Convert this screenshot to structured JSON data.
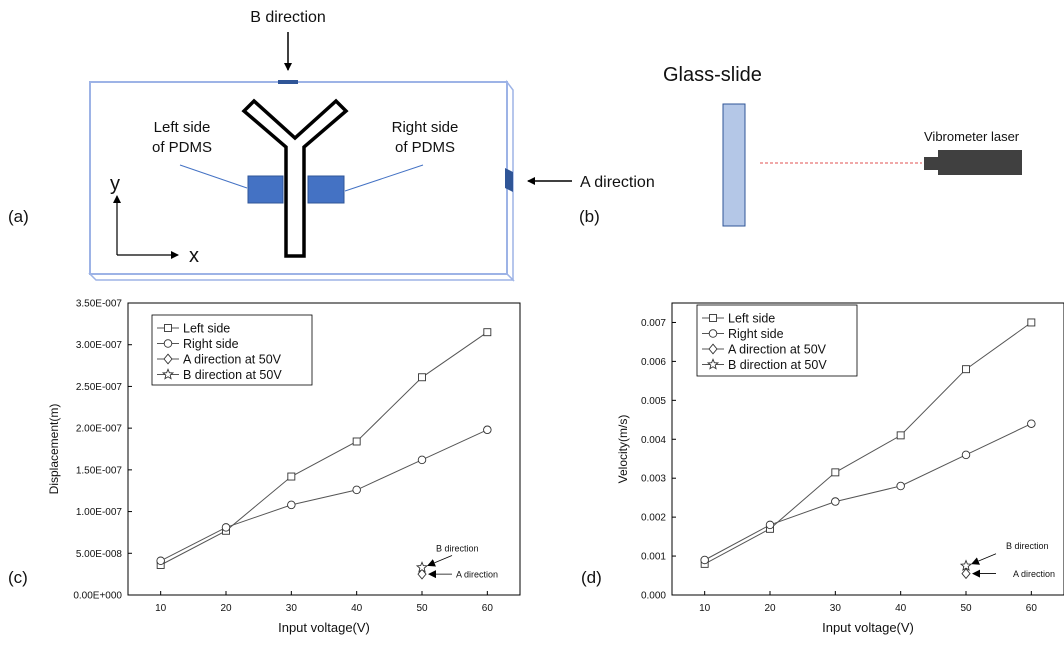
{
  "panel_labels": {
    "a": "(a)",
    "b": "(b)",
    "c": "(c)",
    "d": "(d)"
  },
  "panel_a": {
    "b_direction": "B direction",
    "a_direction": "A direction",
    "left_side_line1": "Left side",
    "left_side_line2": "of PDMS",
    "right_side_line1": "Right side",
    "right_side_line2": "of PDMS",
    "axis_y": "y",
    "axis_x": "x",
    "colors": {
      "pdms": "#4472C4",
      "slide_edge": "#9DB3E6",
      "channel": "#000000"
    }
  },
  "panel_b": {
    "glass_slide": "Glass-slide",
    "vibrometer": "Vibrometer laser",
    "colors": {
      "slide_fill": "#B4C7E7",
      "slide_edge": "#2F5597",
      "laser_body": "#404040",
      "beam": "#E05050"
    }
  },
  "chart_data": [
    {
      "type": "line",
      "x": [
        10,
        20,
        30,
        40,
        50,
        60
      ],
      "xlabel": "Input voltage(V)",
      "ylabel": "Displacement(m)",
      "ylim": [
        0,
        3.5e-07
      ],
      "xlim": [
        5,
        65
      ],
      "yticks": [
        0,
        5e-08,
        1e-07,
        1.5e-07,
        2e-07,
        2.5e-07,
        3e-07,
        3.5e-07
      ],
      "ytick_labels": [
        "0.00E+000",
        "5.00E-008",
        "1.00E-007",
        "1.50E-007",
        "2.00E-007",
        "2.50E-007",
        "3.00E-007",
        "3.50E-007"
      ],
      "xticks": [
        10,
        20,
        30,
        40,
        50,
        60
      ],
      "xtick_labels": [
        "10",
        "20",
        "30",
        "40",
        "50",
        "60"
      ],
      "legend_position": "top-left",
      "grid": false,
      "series": [
        {
          "name": "Left side",
          "marker": "square",
          "values": [
            3.6e-08,
            7.7e-08,
            1.42e-07,
            1.84e-07,
            2.61e-07,
            3.15e-07
          ]
        },
        {
          "name": "Right side",
          "marker": "circle",
          "values": [
            4.1e-08,
            8.1e-08,
            1.08e-07,
            1.26e-07,
            1.62e-07,
            1.98e-07
          ]
        },
        {
          "name": "A direction at 50V",
          "marker": "diamond",
          "x": [
            50
          ],
          "values": [
            2.5e-08
          ]
        },
        {
          "name": "B direction at 50V",
          "marker": "star",
          "x": [
            50
          ],
          "values": [
            3.3e-08
          ]
        }
      ],
      "annotations": {
        "b": "B direction",
        "a": "A direction"
      }
    },
    {
      "type": "line",
      "x": [
        10,
        20,
        30,
        40,
        50,
        60
      ],
      "xlabel": "Input voltage(V)",
      "ylabel": "Velocity(m/s)",
      "ylim": [
        0,
        0.0075
      ],
      "xlim": [
        5,
        65
      ],
      "yticks": [
        0,
        0.001,
        0.002,
        0.003,
        0.004,
        0.005,
        0.006,
        0.007
      ],
      "ytick_labels": [
        "0.000",
        "0.001",
        "0.002",
        "0.003",
        "0.004",
        "0.005",
        "0.006",
        "0.007"
      ],
      "xticks": [
        10,
        20,
        30,
        40,
        50,
        60
      ],
      "xtick_labels": [
        "10",
        "20",
        "30",
        "40",
        "50",
        "60"
      ],
      "legend_position": "top-left",
      "grid": false,
      "series": [
        {
          "name": "Left side",
          "marker": "square",
          "values": [
            0.0008,
            0.0017,
            0.00315,
            0.0041,
            0.0058,
            0.007
          ]
        },
        {
          "name": "Right side",
          "marker": "circle",
          "values": [
            0.0009,
            0.0018,
            0.0024,
            0.0028,
            0.0036,
            0.0044
          ]
        },
        {
          "name": "A direction at 50V",
          "marker": "diamond",
          "x": [
            50
          ],
          "values": [
            0.00055
          ]
        },
        {
          "name": "B direction at 50V",
          "marker": "star",
          "x": [
            50
          ],
          "values": [
            0.00075
          ]
        }
      ],
      "annotations": {
        "b": "B direction",
        "a": "A direction"
      }
    }
  ]
}
